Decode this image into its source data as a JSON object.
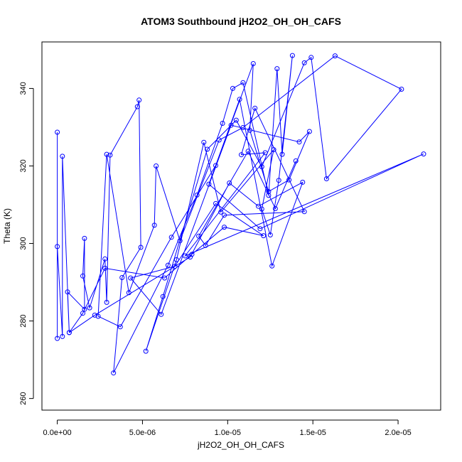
{
  "chart_data": {
    "type": "line",
    "title": "ATOM3 Southbound jH2O2_OH_OH_CAFS",
    "xlabel": "jH2O2_OH_OH_CAFS",
    "ylabel": "Theta (K)",
    "xlim": [
      -9e-07,
      2.25e-05
    ],
    "ylim": [
      257,
      352
    ],
    "x_ticks": [
      {
        "value": 0,
        "label": "0.0e+00"
      },
      {
        "value": 5e-06,
        "label": "5.0e-06"
      },
      {
        "value": 1e-05,
        "label": "1.0e-05"
      },
      {
        "value": 1.5e-05,
        "label": "1.5e-05"
      },
      {
        "value": 2e-05,
        "label": "2.0e-05"
      }
    ],
    "y_ticks": [
      {
        "value": 260,
        "label": "260"
      },
      {
        "value": 280,
        "label": "280"
      },
      {
        "value": 300,
        "label": "300"
      },
      {
        "value": 320,
        "label": "320"
      },
      {
        "value": 340,
        "label": "340"
      }
    ],
    "grid": false,
    "legend": "none",
    "colors": {
      "series": "#0000ff",
      "axis": "#000000"
    },
    "series": [
      {
        "marker": "open-circle",
        "x": [
          0.0,
          0.0,
          0.0,
          3e-07,
          3e-07,
          7e-07,
          6e-07,
          1.6e-06,
          1.6e-06,
          1.5e-06,
          1.9e-06,
          2.8e-06,
          2.9e-06,
          3.1e-06,
          4.7e-06,
          4.8e-06,
          4.9e-06,
          3.8e-06,
          3.3e-06,
          6.5e-06,
          8.2e-06,
          9.7e-06,
          1.03e-05,
          1.09e-05,
          1.24e-05,
          1.29e-05,
          1.32e-05,
          1.38e-05,
          1.3e-05,
          1.25e-05,
          1.2e-05,
          1.27e-05,
          9.6e-06,
          8.6e-06,
          7e-06,
          5.2e-06,
          6.2e-06,
          8.8e-06,
          1.05e-05,
          1.2e-05,
          1.45e-05,
          1.49e-05,
          1.58e-05,
          2.02e-05,
          1.63e-05,
          1.09e-05,
          9.5e-06,
          7.2e-06,
          5.8e-06,
          5.7e-06,
          4.2e-06,
          2.9e-06,
          2.4e-06,
          3.7e-06,
          6.7e-06,
          9.3e-06,
          1.15e-05,
          1.13e-05,
          1.24e-05,
          1.36e-05,
          1.48e-05,
          1.42e-05,
          1.02e-05,
          6.1e-06,
          4.3e-06,
          6.9e-06,
          9.3e-06,
          1.21e-05,
          9.8e-06,
          7.9e-06,
          6.3e-06,
          2.8e-06,
          1.5e-06,
          7e-07,
          2.2e-06,
          7.8e-06,
          1.01e-05,
          1.18e-05,
          1.44e-05,
          1.26e-05,
          1.07e-05,
          8.9e-06,
          1.19e-05,
          2.15e-05,
          7.5e-06,
          1.22e-05,
          1.08e-05,
          1.16e-05,
          1.45e-05,
          9.8e-06,
          8.7e-06,
          8.3e-06,
          1.12e-05,
          1.28e-05,
          1.4e-05
        ],
        "y": [
          328.7,
          275.5,
          299.2,
          276.0,
          322.5,
          277.0,
          287.5,
          283.0,
          301.3,
          291.6,
          283.4,
          296.0,
          284.8,
          322.8,
          335.3,
          337.0,
          299.0,
          291.2,
          266.6,
          294.4,
          312.5,
          331.0,
          340.0,
          341.5,
          312.4,
          345.1,
          323.0,
          348.5,
          316.3,
          302.2,
          308.9,
          324.2,
          308.1,
          326.1,
          295.8,
          272.2,
          286.3,
          324.3,
          331.8,
          319.8,
          346.6,
          348.0,
          316.7,
          339.8,
          348.4,
          329.9,
          326.7,
          300.7,
          320.0,
          304.7,
          287.3,
          323.0,
          281.2,
          278.5,
          301.6,
          320.1,
          346.4,
          329.2,
          313.4,
          316.4,
          328.9,
          326.2,
          330.5,
          281.7,
          291.1,
          294.1,
          310.3,
          302.0,
          304.2,
          297.2,
          291.1,
          293.6,
          282.0,
          277.0,
          281.5,
          296.5,
          315.6,
          309.6,
          315.8,
          294.2,
          337.2,
          315.3,
          303.8,
          323.1,
          296.8,
          323.4,
          322.9,
          334.9,
          308.2,
          307.3,
          299.5,
          301.9,
          323.8,
          309.0,
          321.3
        ]
      }
    ]
  }
}
